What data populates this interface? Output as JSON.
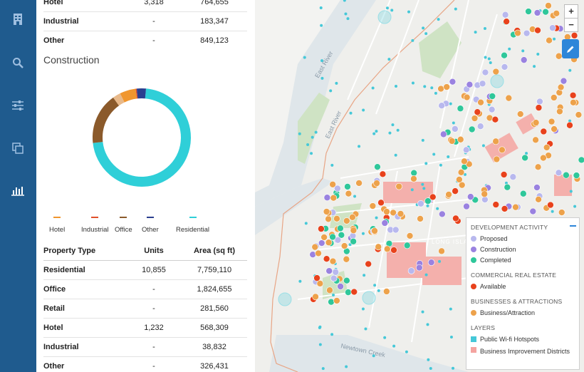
{
  "rail": {
    "icons": [
      "building-icon",
      "search-icon",
      "sliders-icon",
      "layers-icon",
      "bar-chart-icon"
    ]
  },
  "top_table": {
    "rows": [
      {
        "type": "Hotel",
        "units": "3,318",
        "area": "764,655"
      },
      {
        "type": "Industrial",
        "units": "-",
        "area": "183,347"
      },
      {
        "type": "Other",
        "units": "-",
        "area": "849,123"
      }
    ]
  },
  "construction": {
    "title": "Construction"
  },
  "chart_data": {
    "type": "pie",
    "title": "Construction",
    "categories": [
      "Residential",
      "Office",
      "Retail",
      "Hotel",
      "Industrial",
      "Other"
    ],
    "values": [
      7759110,
      1824655,
      281560,
      568309,
      38832,
      326431
    ],
    "colors": [
      "#2fcfd8",
      "#8b5a2b",
      "#e8b98a",
      "#f0962e",
      "#e0502a",
      "#2a3f8f"
    ],
    "legend": [
      {
        "label": "Hotel",
        "color": "#f0962e"
      },
      {
        "label": "Industrial",
        "color": "#e0502a"
      },
      {
        "label": "Office",
        "color": "#8b5a2b"
      },
      {
        "label": "Other",
        "color": "#2a3f8f"
      },
      {
        "label": "Residential",
        "color": "#2fcfd8"
      }
    ]
  },
  "table": {
    "headers": {
      "type": "Property Type",
      "units": "Units",
      "area": "Area (sq ft)"
    },
    "rows": [
      {
        "type": "Residential",
        "units": "10,855",
        "area": "7,759,110"
      },
      {
        "type": "Office",
        "units": "-",
        "area": "1,824,655"
      },
      {
        "type": "Retail",
        "units": "-",
        "area": "281,560"
      },
      {
        "type": "Hotel",
        "units": "1,232",
        "area": "568,309"
      },
      {
        "type": "Industrial",
        "units": "-",
        "area": "38,832"
      },
      {
        "type": "Other",
        "units": "-",
        "area": "326,431"
      }
    ]
  },
  "map": {
    "labels": {
      "east_river_1": "East River",
      "east_river_2": "East River",
      "newtown_creek": "Newtown Creek",
      "long_island": "LONG ISLAND"
    },
    "zoom_in": "+",
    "zoom_out": "−",
    "legend": {
      "dev_heading": "DEVELOPMENT ACTIVITY",
      "proposed": "Proposed",
      "construction": "Construction",
      "completed": "Completed",
      "cre_heading": "COMMERCIAL REAL ESTATE",
      "available": "Available",
      "biz_heading": "BUSINESSES & ATTRACTIONS",
      "business": "Business/Attraction",
      "layers_heading": "LAYERS",
      "wifi": "Public Wi-fi Hotspots",
      "bid": "Business Improvement Districts",
      "colors": {
        "proposed": "#b8b8ee",
        "construction": "#9a82e0",
        "completed": "#2fc79a",
        "available": "#e8421c",
        "business": "#eda24b",
        "wifi": "#45c8d8",
        "bid": "#f4a4a0"
      }
    }
  }
}
